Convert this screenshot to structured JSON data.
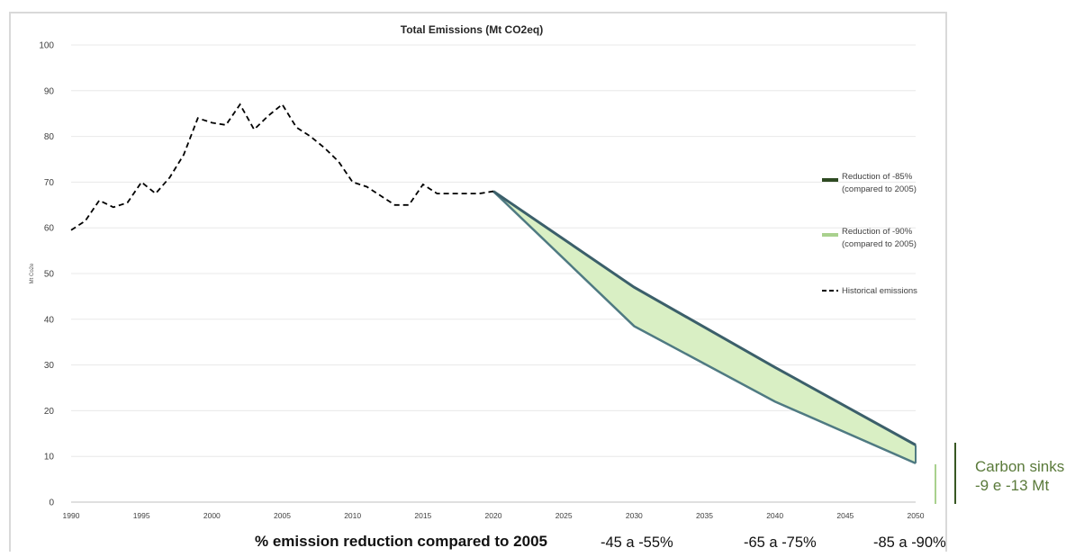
{
  "chart_data": {
    "type": "line",
    "title": "Total Emissions (Mt CO2eq)",
    "ylabel": "Mt Co2e",
    "xlim": [
      1990,
      2050
    ],
    "ylim": [
      0,
      100
    ],
    "x_ticks": [
      1990,
      1995,
      2000,
      2005,
      2010,
      2015,
      2020,
      2025,
      2030,
      2035,
      2040,
      2045,
      2050
    ],
    "y_ticks": [
      0,
      10,
      20,
      30,
      40,
      50,
      60,
      70,
      80,
      90,
      100
    ],
    "grid": true,
    "legend_position": "right",
    "series": [
      {
        "name": "Reduction of -85% (compared to 2005)",
        "name_lines": [
          "Reduction of -85%",
          "(compared to 2005)"
        ],
        "style": "solid",
        "color": "#2e4a22",
        "x": [
          2020,
          2030,
          2040,
          2050
        ],
        "values": [
          68,
          47,
          29.5,
          12.5
        ]
      },
      {
        "name": "Reduction of -90% (compared to 2005)",
        "name_lines": [
          "Reduction of -90%",
          "(compared to 2005)"
        ],
        "style": "solid",
        "color": "#a9d18e",
        "x": [
          2020,
          2030,
          2040,
          2050
        ],
        "values": [
          68,
          38.5,
          22,
          8.5
        ]
      },
      {
        "name": "Historical emissions",
        "name_lines": [
          "Historical emissions"
        ],
        "style": "dashed",
        "color": "#000000",
        "x": [
          1990,
          1991,
          1992,
          1993,
          1994,
          1995,
          1996,
          1997,
          1998,
          1999,
          2000,
          2001,
          2002,
          2003,
          2004,
          2005,
          2006,
          2007,
          2008,
          2009,
          2010,
          2011,
          2012,
          2013,
          2014,
          2015,
          2016,
          2017,
          2018,
          2019,
          2020
        ],
        "values": [
          59.5,
          61.5,
          66,
          64.5,
          65.5,
          70,
          67.5,
          71,
          76,
          84,
          83,
          82.5,
          87,
          81.5,
          84.5,
          87,
          82,
          80,
          77.5,
          74.5,
          70,
          69,
          67,
          65,
          65,
          69.5,
          67.5,
          67.5,
          67.5,
          67.5,
          68
        ]
      }
    ],
    "band_fill": "#d9efc4",
    "band_edge": "#4f7a82"
  },
  "bottom": {
    "caption": "% emission reduction compared to 2005",
    "range_2030": "-45 a -55%",
    "range_2040": "-65 a -75%",
    "range_2050": "-85 a -90%"
  },
  "sinks": {
    "line1": "Carbon sinks",
    "line2": "-9 e -13 Mt"
  }
}
